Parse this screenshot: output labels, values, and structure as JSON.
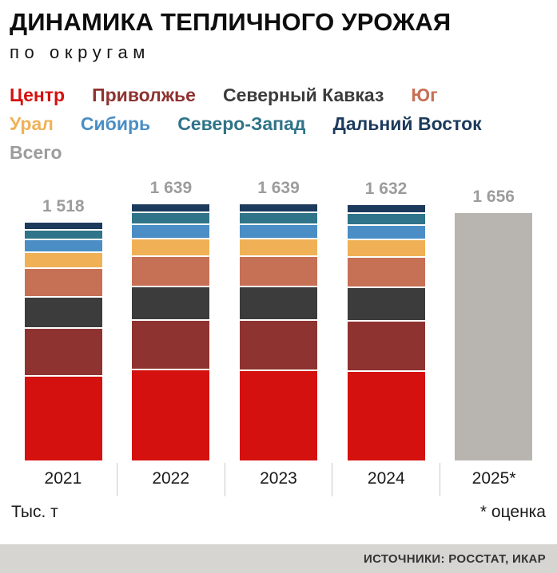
{
  "header": {
    "title": "ДИНАМИКА ТЕПЛИЧНОГО УРОЖАЯ",
    "subtitle": "по округам"
  },
  "legend": {
    "rows": [
      [
        {
          "label": "Центр",
          "color": "#d4110e"
        },
        {
          "label": "Приволжье",
          "color": "#8e3330"
        },
        {
          "label": "Северный Кавказ",
          "color": "#3c3c3c"
        },
        {
          "label": "Юг",
          "color": "#c67055"
        }
      ],
      [
        {
          "label": "Урал",
          "color": "#f0b156"
        },
        {
          "label": "Сибирь",
          "color": "#4a8ec5"
        },
        {
          "label": "Северо-Запад",
          "color": "#2f7488"
        },
        {
          "label": "Дальний Восток",
          "color": "#1c3a5c"
        }
      ],
      [
        {
          "label": "Всего",
          "color": "#9c9c9c"
        }
      ]
    ]
  },
  "chart_data": {
    "type": "bar",
    "stacked": true,
    "title": "ДИНАМИКА ТЕПЛИЧНОГО УРОЖАЯ по округам",
    "ylabel": "Тыс. т",
    "categories": [
      "2021",
      "2022",
      "2023",
      "2024",
      "2025*"
    ],
    "totals": [
      1518,
      1639,
      1639,
      1632,
      1656
    ],
    "total_labels": [
      "1 518",
      "1 639",
      "1 639",
      "1 632",
      "1 656"
    ],
    "series": [
      {
        "name": "Центр",
        "color": "#d4110e",
        "values": [
          560,
          605,
          600,
          595
        ]
      },
      {
        "name": "Приволжье",
        "color": "#8e3330",
        "values": [
          310,
          320,
          325,
          325
        ]
      },
      {
        "name": "Северный Кавказ",
        "color": "#3c3c3c",
        "values": [
          200,
          215,
          215,
          215
        ]
      },
      {
        "name": "Юг",
        "color": "#c67055",
        "values": [
          180,
          190,
          190,
          190
        ]
      },
      {
        "name": "Урал",
        "color": "#f0b156",
        "values": [
          95,
          105,
          105,
          105
        ]
      },
      {
        "name": "Сибирь",
        "color": "#4a8ec5",
        "values": [
          75,
          85,
          85,
          83
        ]
      },
      {
        "name": "Северо-Запад",
        "color": "#2f7488",
        "values": [
          55,
          70,
          70,
          70
        ]
      },
      {
        "name": "Дальний Восток",
        "color": "#1c3a5c",
        "values": [
          43,
          49,
          49,
          49
        ]
      }
    ],
    "estimate_bar": {
      "category": "2025*",
      "name": "Всего",
      "value": 1656,
      "color": "#b8b5b1",
      "note": "оценка"
    },
    "ylim": [
      0,
      1700
    ],
    "grid": false,
    "legend_position": "top"
  },
  "footer": {
    "unit_label": "Тыс. т",
    "estimate_note": "* оценка",
    "sources": "ИСТОЧНИКИ: РОССТАТ, ИКАР"
  }
}
